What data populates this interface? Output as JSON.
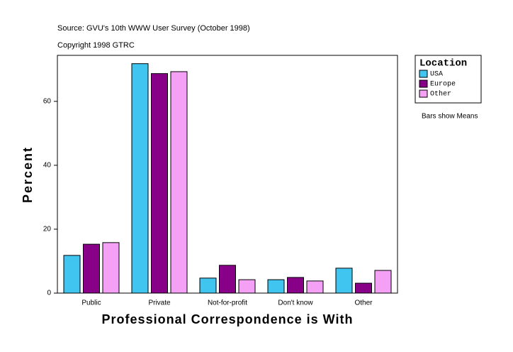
{
  "chart_data": {
    "type": "bar",
    "title": "Source: GVU's 10th WWW User Survey (October 1998)",
    "subtitle": "Copyright 1998 GTRC",
    "note": "Bars show Means",
    "x_label": "Professional Correspondence is With",
    "y_label": "Percent",
    "legend_title": "Location",
    "categories": [
      "Public",
      "Private",
      "Not-for-profit",
      "Don't know",
      "Other"
    ],
    "series": [
      {
        "name": "USA",
        "color": "#40c4f0",
        "values": [
          11.8,
          71.8,
          4.7,
          4.2,
          7.8
        ]
      },
      {
        "name": "Europe",
        "color": "#880088",
        "values": [
          15.3,
          68.7,
          8.7,
          4.9,
          3.1
        ]
      },
      {
        "name": "Other",
        "color": "#f4a0f4",
        "values": [
          15.8,
          69.3,
          4.2,
          3.8,
          7.1
        ]
      }
    ],
    "ylim": [
      0,
      74.4
    ],
    "yticks": [
      0,
      20,
      40,
      60
    ],
    "legend_position": "right"
  }
}
